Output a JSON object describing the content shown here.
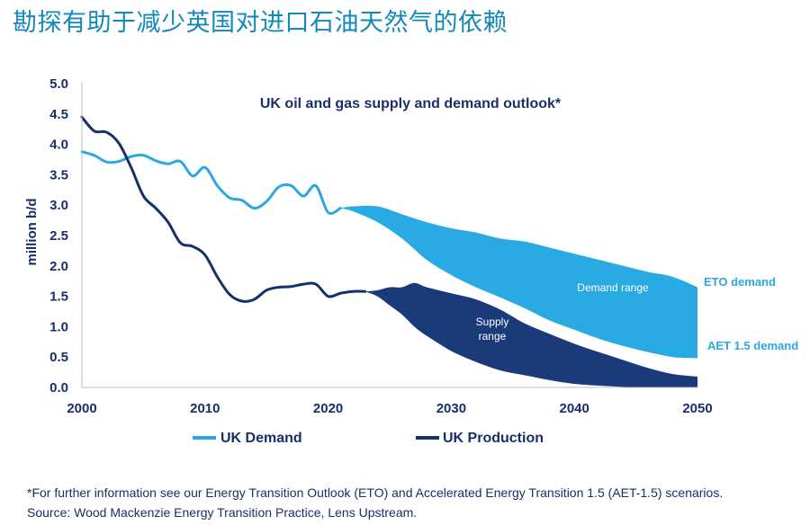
{
  "page": {
    "title": "勘探有助于减少英国对进口石油天然气的依赖",
    "footnote": "*For further information see our Energy Transition Outlook (ETO) and Accelerated Energy Transition 1.5 (AET-1.5) scenarios.",
    "source": "Source: Wood Mackenzie Energy Transition Practice, Lens Upstream."
  },
  "colors": {
    "demand": "#2ba8e0",
    "production": "#15306d",
    "demand_range": "#29aae2",
    "supply_range": "#1b3a7a",
    "axis_text": "#1a2f6a",
    "title": "#1189b9"
  },
  "chart_data": {
    "type": "line",
    "title": "UK oil and gas supply and demand outlook*",
    "xlabel": "",
    "ylabel": "million b/d",
    "xlim": [
      2000,
      2050
    ],
    "ylim": [
      0,
      5.0
    ],
    "xticks": [
      "2000",
      "2010",
      "2020",
      "2030",
      "2040",
      "2050"
    ],
    "yticks": [
      "0.0",
      "0.5",
      "1.0",
      "1.5",
      "2.0",
      "2.5",
      "3.0",
      "3.5",
      "4.0",
      "4.5",
      "5.0"
    ],
    "grid": false,
    "legend_position": "bottom",
    "series": [
      {
        "name": "UK Demand",
        "x": [
          2000,
          2001,
          2002,
          2003,
          2004,
          2005,
          2006,
          2007,
          2008,
          2009,
          2010,
          2011,
          2012,
          2013,
          2014,
          2015,
          2016,
          2017,
          2018,
          2019,
          2020,
          2021
        ],
        "values": [
          3.88,
          3.82,
          3.71,
          3.72,
          3.8,
          3.82,
          3.73,
          3.68,
          3.72,
          3.48,
          3.62,
          3.32,
          3.12,
          3.08,
          2.95,
          3.06,
          3.3,
          3.32,
          3.15,
          3.32,
          2.88,
          2.95
        ]
      },
      {
        "name": "UK Production",
        "x": [
          2000,
          2001,
          2002,
          2003,
          2004,
          2005,
          2006,
          2007,
          2008,
          2009,
          2010,
          2011,
          2012,
          2013,
          2014,
          2015,
          2016,
          2017,
          2018,
          2019,
          2020,
          2021,
          2022,
          2023
        ],
        "values": [
          4.45,
          4.22,
          4.2,
          4.02,
          3.62,
          3.15,
          2.95,
          2.72,
          2.38,
          2.32,
          2.18,
          1.82,
          1.53,
          1.42,
          1.45,
          1.6,
          1.65,
          1.66,
          1.7,
          1.7,
          1.5,
          1.55,
          1.58,
          1.58
        ]
      },
      {
        "name": "Demand range",
        "type": "area",
        "x": [
          2021,
          2022,
          2024,
          2026,
          2028,
          2030,
          2032,
          2034,
          2036,
          2038,
          2040,
          2042,
          2044,
          2046,
          2048,
          2050
        ],
        "upper": [
          2.95,
          2.98,
          2.98,
          2.85,
          2.72,
          2.62,
          2.55,
          2.45,
          2.4,
          2.3,
          2.2,
          2.1,
          2.0,
          1.9,
          1.82,
          1.65
        ],
        "lower": [
          2.95,
          2.9,
          2.72,
          2.45,
          2.1,
          1.85,
          1.65,
          1.48,
          1.3,
          1.1,
          0.95,
          0.8,
          0.68,
          0.58,
          0.5,
          0.48
        ]
      },
      {
        "name": "Supply range",
        "type": "area",
        "x": [
          2023,
          2024,
          2025,
          2026,
          2027,
          2028,
          2030,
          2032,
          2034,
          2036,
          2038,
          2040,
          2042,
          2044,
          2046,
          2048,
          2050
        ],
        "upper": [
          1.58,
          1.6,
          1.65,
          1.65,
          1.72,
          1.65,
          1.55,
          1.45,
          1.28,
          1.05,
          0.88,
          0.72,
          0.58,
          0.45,
          0.32,
          0.22,
          0.18
        ],
        "lower": [
          1.58,
          1.5,
          1.35,
          1.2,
          1.0,
          0.85,
          0.6,
          0.42,
          0.28,
          0.2,
          0.12,
          0.06,
          0.03,
          0.01,
          0.0,
          0.0,
          0.0
        ]
      }
    ],
    "annotations": {
      "demand_range": "Demand range",
      "supply_range": [
        "Supply",
        "range"
      ],
      "eto_demand": "ETO demand",
      "aet_demand": "AET 1.5 demand"
    },
    "legend": [
      "UK Demand",
      "UK Production"
    ]
  }
}
